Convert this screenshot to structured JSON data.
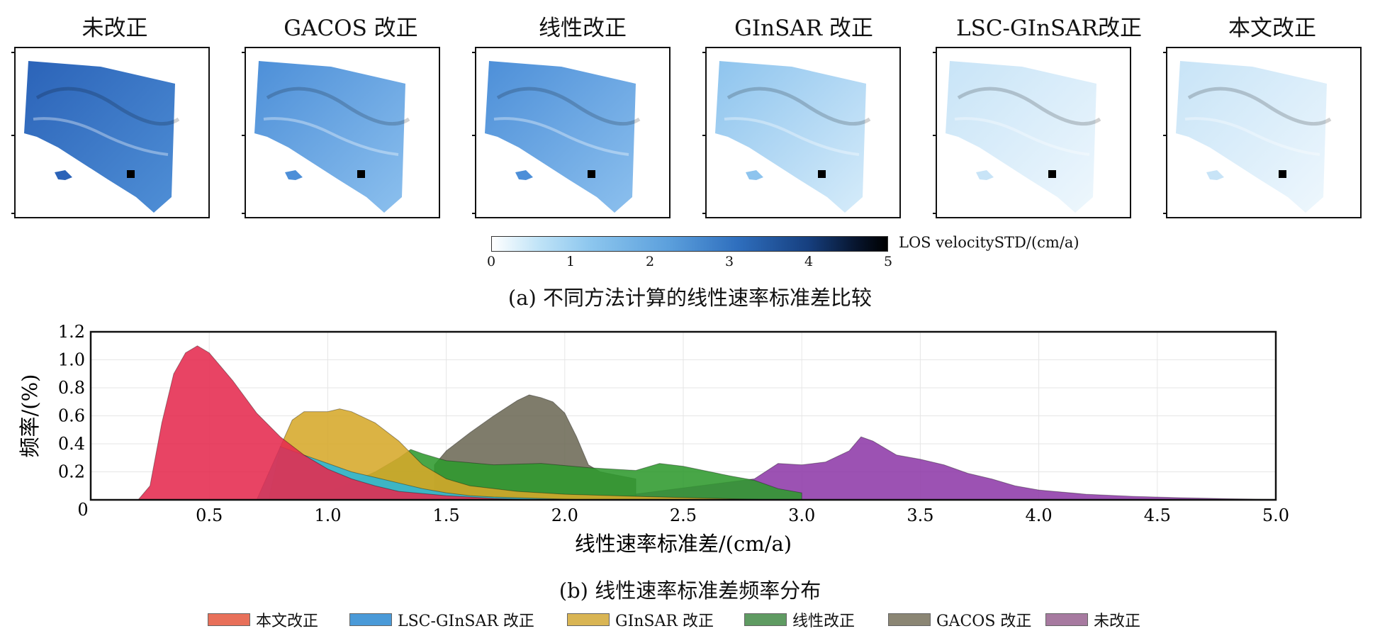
{
  "maps": [
    {
      "title": "未改正",
      "shade": "dark"
    },
    {
      "title": "GACOS 改正",
      "shade": "mid"
    },
    {
      "title": "线性改正",
      "shade": "mid"
    },
    {
      "title": "GInSAR 改正",
      "shade": "light"
    },
    {
      "title": "LSC-GInSAR改正",
      "shade": "lightest"
    },
    {
      "title": "本文改正",
      "shade": "lightest"
    }
  ],
  "colorbar": {
    "ticks": [
      "0",
      "1",
      "2",
      "3",
      "4",
      "5"
    ],
    "label": "LOS velocitySTD/(cm/a)",
    "colors": [
      "#ffffff",
      "#8cc6ee",
      "#2f6fbe",
      "#07152e"
    ]
  },
  "caption_a": "(a) 不同方法计算的线性速率标准差比较",
  "caption_b": "(b) 线性速率标准差频率分布",
  "chart_data": {
    "type": "area",
    "title": "",
    "xlabel": "线性速率标准差/(cm/a)",
    "ylabel": "频率/(%)",
    "xlim": [
      0,
      5.0
    ],
    "ylim": [
      0,
      1.2
    ],
    "xticks": [
      "0.5",
      "1.0",
      "1.5",
      "2.0",
      "2.5",
      "3.0",
      "3.5",
      "4.0",
      "4.5",
      "5.0"
    ],
    "yticks": [
      "0",
      "0.2",
      "0.4",
      "0.6",
      "0.8",
      "1.0",
      "1.2"
    ],
    "legend": [
      "本文改正",
      "LSC-GInSAR 改正",
      "GInSAR 改正",
      "线性改正",
      "GACOS 改正",
      "未改正"
    ],
    "series": [
      {
        "name": "未改正",
        "color": "#8e3aa8",
        "x": [
          1.5,
          2.2,
          2.8,
          2.9,
          3.0,
          3.1,
          3.2,
          3.25,
          3.3,
          3.4,
          3.5,
          3.6,
          3.7,
          3.8,
          3.9,
          4.0,
          4.2,
          4.4,
          4.6,
          4.8,
          5.0
        ],
        "y": [
          0.0,
          0.02,
          0.15,
          0.26,
          0.25,
          0.27,
          0.35,
          0.45,
          0.42,
          0.32,
          0.29,
          0.25,
          0.19,
          0.15,
          0.1,
          0.07,
          0.04,
          0.025,
          0.015,
          0.008,
          0.003
        ]
      },
      {
        "name": "GACOS 改正",
        "color": "#6d6a57",
        "x": [
          1.45,
          1.5,
          1.6,
          1.7,
          1.8,
          1.85,
          1.9,
          1.95,
          2.0,
          2.05,
          2.1,
          2.15,
          2.3
        ],
        "y": [
          0.25,
          0.35,
          0.48,
          0.6,
          0.71,
          0.75,
          0.73,
          0.7,
          0.62,
          0.45,
          0.25,
          0.2,
          0.15
        ]
      },
      {
        "name": "线性改正",
        "color": "#2f9a2e",
        "x": [
          0.8,
          1.0,
          1.2,
          1.3,
          1.35,
          1.4,
          1.5,
          1.7,
          1.9,
          2.1,
          2.3,
          2.4,
          2.5,
          2.7,
          2.8,
          2.9,
          3.0
        ],
        "y": [
          0.0,
          0.05,
          0.2,
          0.3,
          0.36,
          0.33,
          0.28,
          0.25,
          0.26,
          0.23,
          0.21,
          0.26,
          0.24,
          0.17,
          0.14,
          0.08,
          0.05
        ]
      },
      {
        "name": "GInSAR 改正",
        "color": "#d6a82a",
        "x": [
          0.75,
          0.8,
          0.85,
          0.9,
          1.0,
          1.05,
          1.1,
          1.2,
          1.3,
          1.4,
          1.5,
          1.6,
          1.8,
          2.0,
          2.4,
          2.9
        ],
        "y": [
          0.0,
          0.38,
          0.57,
          0.63,
          0.63,
          0.65,
          0.63,
          0.55,
          0.42,
          0.25,
          0.15,
          0.1,
          0.06,
          0.04,
          0.02,
          0.0
        ]
      },
      {
        "name": "LSC-GInSAR 改正",
        "color": "#2ab6da",
        "x": [
          0.7,
          0.8,
          0.9,
          1.0,
          1.1,
          1.2,
          1.3,
          1.4,
          1.5,
          1.6,
          1.7,
          1.9,
          2.1
        ],
        "y": [
          0.0,
          0.38,
          0.32,
          0.26,
          0.2,
          0.16,
          0.12,
          0.08,
          0.05,
          0.03,
          0.02,
          0.01,
          0.0
        ]
      },
      {
        "name": "本文改正",
        "color": "#e52a4e",
        "x": [
          0.2,
          0.25,
          0.3,
          0.35,
          0.4,
          0.45,
          0.5,
          0.55,
          0.6,
          0.7,
          0.8,
          0.9,
          1.0,
          1.1,
          1.2,
          1.3,
          1.5,
          1.7,
          1.9
        ],
        "y": [
          0.0,
          0.1,
          0.55,
          0.9,
          1.05,
          1.1,
          1.05,
          0.95,
          0.85,
          0.62,
          0.45,
          0.32,
          0.22,
          0.15,
          0.1,
          0.06,
          0.03,
          0.01,
          0.0
        ]
      }
    ]
  }
}
